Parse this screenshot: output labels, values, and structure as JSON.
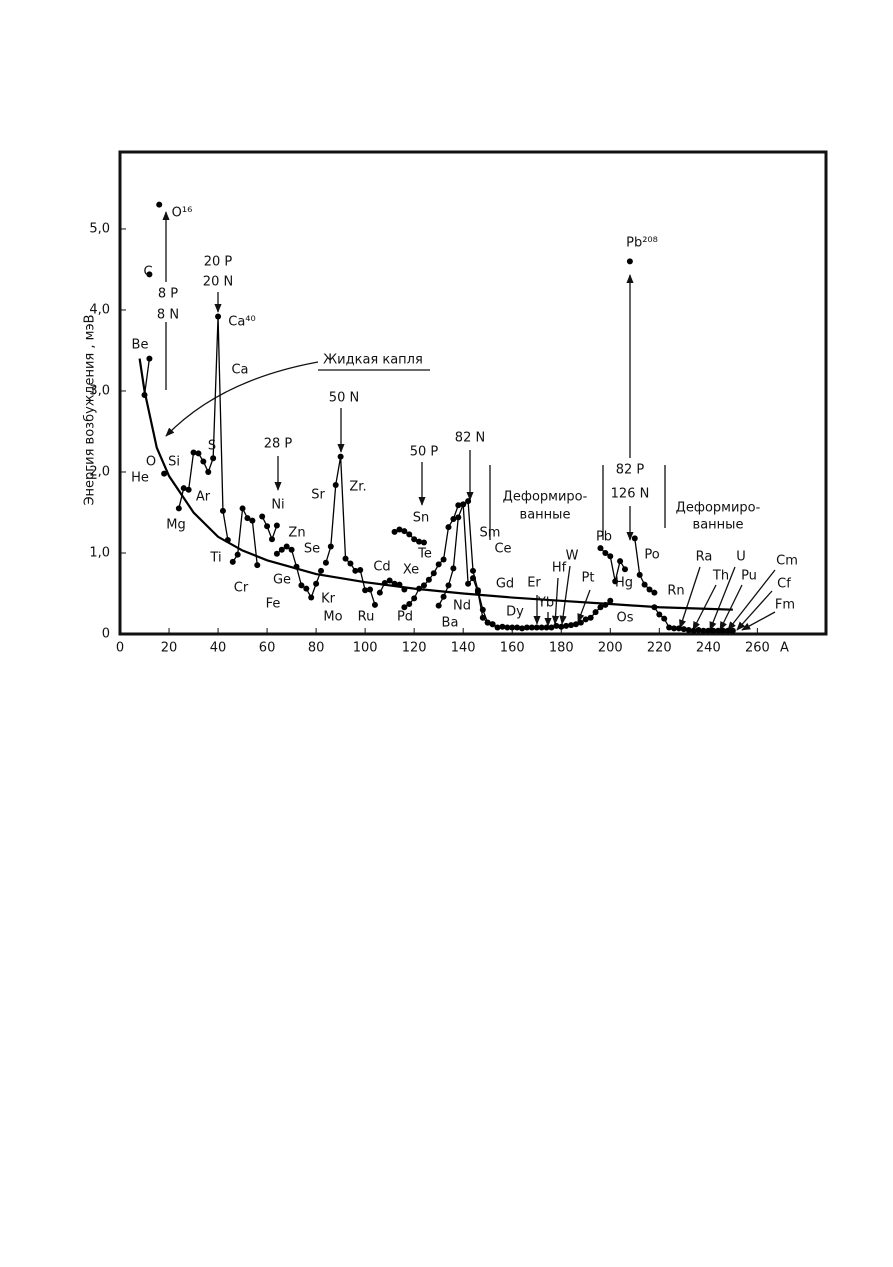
{
  "chart_data": {
    "type": "line",
    "xlabel": "A",
    "ylabel": "Энергия возбуждения , мэВ",
    "xlim": [
      0,
      288
    ],
    "ylim": [
      0,
      5.95
    ],
    "xticks": [
      0,
      20,
      40,
      60,
      80,
      100,
      120,
      140,
      160,
      180,
      200,
      220,
      240,
      260
    ],
    "yticks": [
      0,
      {
        "value": 1,
        "label": "1,0"
      },
      {
        "value": 2,
        "label": "2,0"
      },
      {
        "value": 3,
        "label": "3,0"
      },
      {
        "value": 4,
        "label": "4,0"
      },
      {
        "value": 5,
        "label": "5,0"
      }
    ],
    "series": [
      {
        "color": "#000000",
        "markers": true,
        "x": [
          10,
          12,
          null,
          12,
          null,
          16,
          null,
          18,
          null,
          24,
          26,
          28,
          30,
          32,
          34,
          36,
          38,
          40,
          42,
          44,
          null,
          46,
          48,
          50,
          52,
          54,
          56,
          null,
          58,
          60,
          62,
          64,
          null,
          64,
          66,
          68,
          70,
          72,
          74,
          null,
          76,
          78,
          80,
          82,
          null,
          84,
          86,
          88,
          90,
          92,
          94,
          96,
          98,
          100,
          102,
          104,
          null,
          106,
          108,
          110,
          112,
          114,
          116,
          null,
          112,
          114,
          116,
          118,
          120,
          122,
          124,
          null,
          116,
          118,
          120,
          122,
          124,
          126,
          128,
          130,
          132,
          134,
          136,
          138,
          140,
          142,
          144,
          146,
          148,
          150,
          152,
          null,
          130,
          132,
          134,
          136,
          138,
          140,
          142,
          144,
          146,
          148,
          150,
          152,
          154,
          null,
          156,
          158,
          160,
          162,
          164,
          166,
          168,
          170,
          172,
          174,
          176,
          178,
          180,
          182,
          184,
          186,
          188,
          190,
          192,
          194,
          196,
          198,
          200,
          null,
          196,
          198,
          200,
          202,
          204,
          206,
          null,
          208,
          null,
          210,
          212,
          214,
          216,
          218,
          null,
          218,
          220,
          222,
          224,
          226,
          228,
          230,
          232,
          234,
          236,
          238,
          240,
          242,
          244,
          246,
          248,
          250
        ],
        "values": [
          2.95,
          3.4,
          null,
          4.44,
          null,
          5.3,
          null,
          1.98,
          null,
          1.55,
          1.8,
          1.78,
          2.24,
          2.23,
          2.13,
          2.0,
          2.17,
          3.92,
          1.52,
          1.16,
          null,
          0.89,
          0.98,
          1.55,
          1.43,
          1.4,
          0.85,
          null,
          1.45,
          1.33,
          1.17,
          1.34,
          null,
          0.99,
          1.04,
          1.08,
          1.04,
          0.83,
          0.6,
          null,
          0.56,
          0.45,
          0.62,
          0.78,
          null,
          0.88,
          1.08,
          1.84,
          2.19,
          0.93,
          0.87,
          0.78,
          0.79,
          0.54,
          0.55,
          0.36,
          null,
          0.51,
          0.63,
          0.66,
          0.62,
          0.61,
          0.55,
          null,
          1.26,
          1.29,
          1.27,
          1.23,
          1.17,
          1.14,
          1.13,
          null,
          0.33,
          0.37,
          0.44,
          0.56,
          0.6,
          0.67,
          0.75,
          0.86,
          0.92,
          1.32,
          1.42,
          1.59,
          1.6,
          0.62,
          0.69,
          0.52,
          0.2,
          0.14,
          0.12,
          null,
          0.35,
          0.46,
          0.6,
          0.81,
          1.44,
          1.6,
          1.64,
          0.78,
          0.54,
          0.3,
          0.14,
          0.12,
          0.08,
          null,
          0.09,
          0.08,
          0.08,
          0.08,
          0.07,
          0.08,
          0.08,
          0.08,
          0.08,
          0.08,
          0.08,
          0.1,
          0.09,
          0.1,
          0.11,
          0.12,
          0.14,
          0.18,
          0.2,
          0.27,
          0.33,
          0.36,
          0.41,
          null,
          1.06,
          1.0,
          0.96,
          0.65,
          0.9,
          0.8,
          null,
          4.6,
          null,
          1.18,
          0.73,
          0.61,
          0.55,
          0.51,
          null,
          0.33,
          0.24,
          0.19,
          0.08,
          0.07,
          0.07,
          0.06,
          0.05,
          0.04,
          0.05,
          0.04,
          0.04,
          0.04,
          0.04,
          0.04,
          0.04,
          0.04
        ]
      },
      {
        "color": "#000000",
        "markers": false,
        "x": [
          8,
          10,
          15,
          20,
          30,
          40,
          50,
          60,
          80,
          100,
          120,
          140,
          160,
          180,
          200,
          220,
          240,
          250
        ],
        "values": [
          3.4,
          3.0,
          2.3,
          1.95,
          1.5,
          1.2,
          1.03,
          0.91,
          0.74,
          0.64,
          0.56,
          0.5,
          0.45,
          0.41,
          0.37,
          0.33,
          0.31,
          0.3
        ]
      }
    ],
    "annotations": [
      "Be",
      "C",
      "O¹⁶",
      "He",
      "O",
      "Si",
      "Mg",
      "Ar",
      "S",
      "Ca⁴⁰",
      "Ca",
      "Ti",
      "Cr",
      "Fe",
      "Ge",
      "Ni",
      "Zn",
      "Se",
      "Kr",
      "Mo",
      "Sr",
      "Zr.",
      "Ru",
      "Cd",
      "Pd",
      "Xe",
      "Te",
      "Sn",
      "Ba",
      "Nd",
      "Gd",
      "Dy",
      "Sm",
      "Ce",
      "Er",
      "Yb",
      "Hf",
      "W",
      "Pt",
      "Os",
      "Hg",
      "Pb",
      "Po",
      "Rn",
      "Pb²⁰⁸",
      "Ra",
      "Th",
      "U",
      "Pu",
      "Cm",
      "Cf",
      "Fm",
      "8 P",
      "8 N",
      "20 P",
      "20 N",
      "28 P",
      "50 N",
      "50 P",
      "82 N",
      "82 P",
      "126 N",
      "Жидкая капля",
      "Деформиро-",
      "ванные",
      "Деформиро-",
      "ванные"
    ]
  }
}
